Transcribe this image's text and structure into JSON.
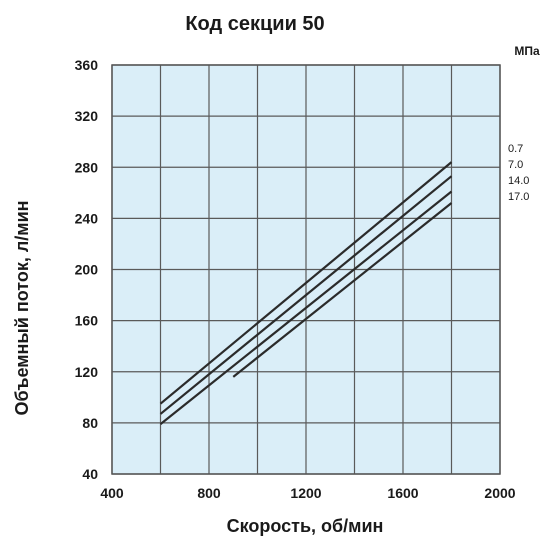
{
  "chart_data": {
    "type": "line",
    "title": "Код секции 50",
    "xlabel": "Скорость, об/мин",
    "ylabel": "Объемный поток, л/мин",
    "unit_label": "МПа",
    "xlim": [
      400,
      2000
    ],
    "ylim": [
      40,
      360
    ],
    "x_ticks": [
      "400",
      "800",
      "1200",
      "1600",
      "2000"
    ],
    "y_ticks": [
      "360",
      "320",
      "280",
      "240",
      "200",
      "160",
      "120",
      "80",
      "40"
    ],
    "grid": true,
    "legend_position": "right",
    "background_color": "#daeef8",
    "line_color": "#2b2b2b",
    "series": [
      {
        "name": "0.7",
        "x": [
          600,
          1800
        ],
        "y": [
          95,
          284
        ]
      },
      {
        "name": "7.0",
        "x": [
          600,
          1800
        ],
        "y": [
          87,
          273
        ]
      },
      {
        "name": "14.0",
        "x": [
          600,
          1800
        ],
        "y": [
          79,
          261
        ]
      },
      {
        "name": "17.0",
        "x": [
          900,
          1800
        ],
        "y": [
          116,
          252
        ]
      }
    ]
  }
}
